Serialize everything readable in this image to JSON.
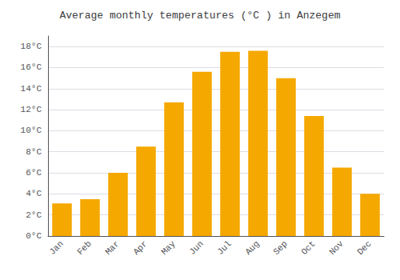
{
  "chart_data": {
    "type": "bar",
    "title": "Average monthly temperatures (°C ) in Anzegem",
    "categories": [
      "Jan",
      "Feb",
      "Mar",
      "Apr",
      "May",
      "Jun",
      "Jul",
      "Aug",
      "Sep",
      "Oct",
      "Nov",
      "Dec"
    ],
    "values": [
      3.1,
      3.5,
      6.0,
      8.5,
      12.7,
      15.6,
      17.5,
      17.6,
      15.0,
      11.4,
      6.5,
      4.0
    ],
    "color": "#F5A800",
    "ylim": [
      0,
      19
    ],
    "yticks": [
      {
        "value": 0,
        "label": "0°C"
      },
      {
        "value": 2,
        "label": "2°C"
      },
      {
        "value": 4,
        "label": "4°C"
      },
      {
        "value": 6,
        "label": "6°C"
      },
      {
        "value": 8,
        "label": "8°C"
      },
      {
        "value": 10,
        "label": "10°C"
      },
      {
        "value": 12,
        "label": "12°C"
      },
      {
        "value": 14,
        "label": "14°C"
      },
      {
        "value": 16,
        "label": "16°C"
      },
      {
        "value": 18,
        "label": "18°C"
      }
    ],
    "grid": true
  }
}
